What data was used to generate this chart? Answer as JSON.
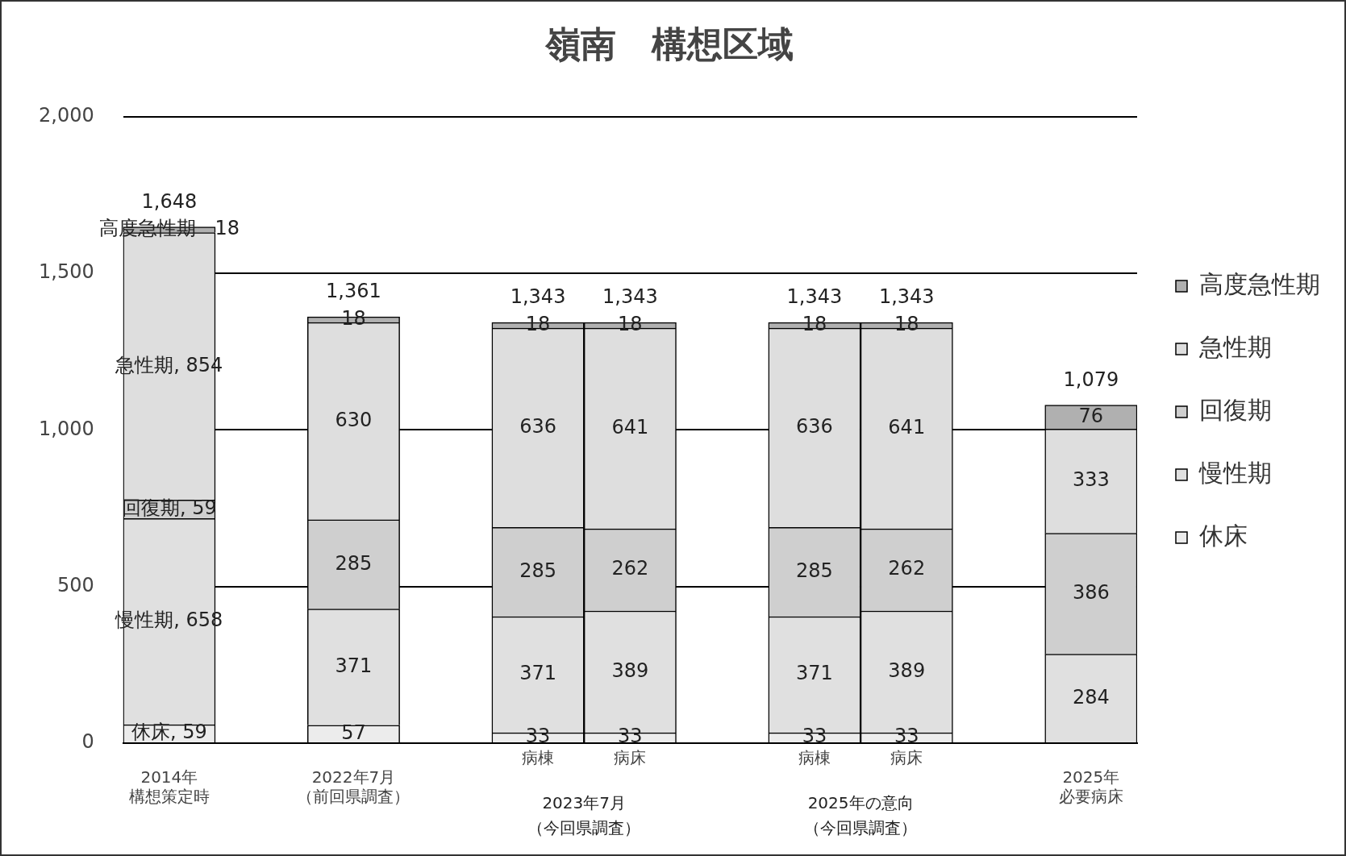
{
  "chart_data": {
    "type": "bar",
    "title": "嶺南　構想区域",
    "stacked": true,
    "categories": [
      "2014年構想策定時",
      null,
      "2022年7月（前回県調査）",
      null,
      "病棟",
      "病床",
      null,
      "病棟",
      "病床",
      null,
      "2025年必要病床"
    ],
    "annotations": [
      "2023年7月（今回県調査）",
      "2025年の意向（今回県調査）"
    ],
    "series": [
      {
        "name": "休床",
        "color": "#ececec",
        "values": [
          59,
          null,
          57,
          null,
          33,
          33,
          null,
          33,
          33,
          null,
          null
        ],
        "value_labels": [
          "休床, 59",
          null,
          "57",
          null,
          "33",
          "33",
          null,
          "33",
          "33",
          null,
          null
        ]
      },
      {
        "name": "慢性期",
        "color": "#e0e0e0",
        "values": [
          658,
          null,
          371,
          null,
          371,
          389,
          null,
          371,
          389,
          null,
          284
        ],
        "value_labels": [
          "慢性期, 658",
          null,
          "371",
          null,
          "371",
          "389",
          null,
          "371",
          "389",
          null,
          "284"
        ]
      },
      {
        "name": "回復期",
        "color": "#cfcfcf",
        "values": [
          59,
          null,
          285,
          null,
          285,
          262,
          null,
          285,
          262,
          null,
          386
        ],
        "value_labels": [
          "回復期, 59",
          null,
          "285",
          null,
          "285",
          "262",
          null,
          "285",
          "262",
          null,
          "386"
        ]
      },
      {
        "name": "急性期",
        "color": "#dedede",
        "values": [
          854,
          null,
          630,
          null,
          636,
          641,
          null,
          636,
          641,
          null,
          333
        ],
        "value_labels": [
          "急性期, 854",
          null,
          "630",
          null,
          "636",
          "641",
          null,
          "636",
          "641",
          null,
          "333"
        ]
      },
      {
        "name": "高度急性期",
        "color": "#b0b0b0",
        "values": [
          18,
          null,
          18,
          null,
          18,
          18,
          null,
          18,
          18,
          null,
          76
        ],
        "value_labels": [
          "高度急性期　18",
          null,
          "18",
          null,
          "18",
          "18",
          null,
          "18",
          "18",
          null,
          "76"
        ]
      }
    ],
    "totals": [
      "1,648",
      null,
      "1,361",
      null,
      "1,343",
      "1,343",
      null,
      "1,343",
      "1,343",
      null,
      "1,079"
    ],
    "ylim": [
      0,
      2000
    ],
    "yticks": [
      {
        "value": 0,
        "label": "0"
      },
      {
        "value": 500,
        "label": "500"
      },
      {
        "value": 1000,
        "label": "1,000"
      },
      {
        "value": 1500,
        "label": "1,500"
      },
      {
        "value": 2000,
        "label": "2,000"
      }
    ],
    "grid": "y",
    "legend": "right"
  }
}
